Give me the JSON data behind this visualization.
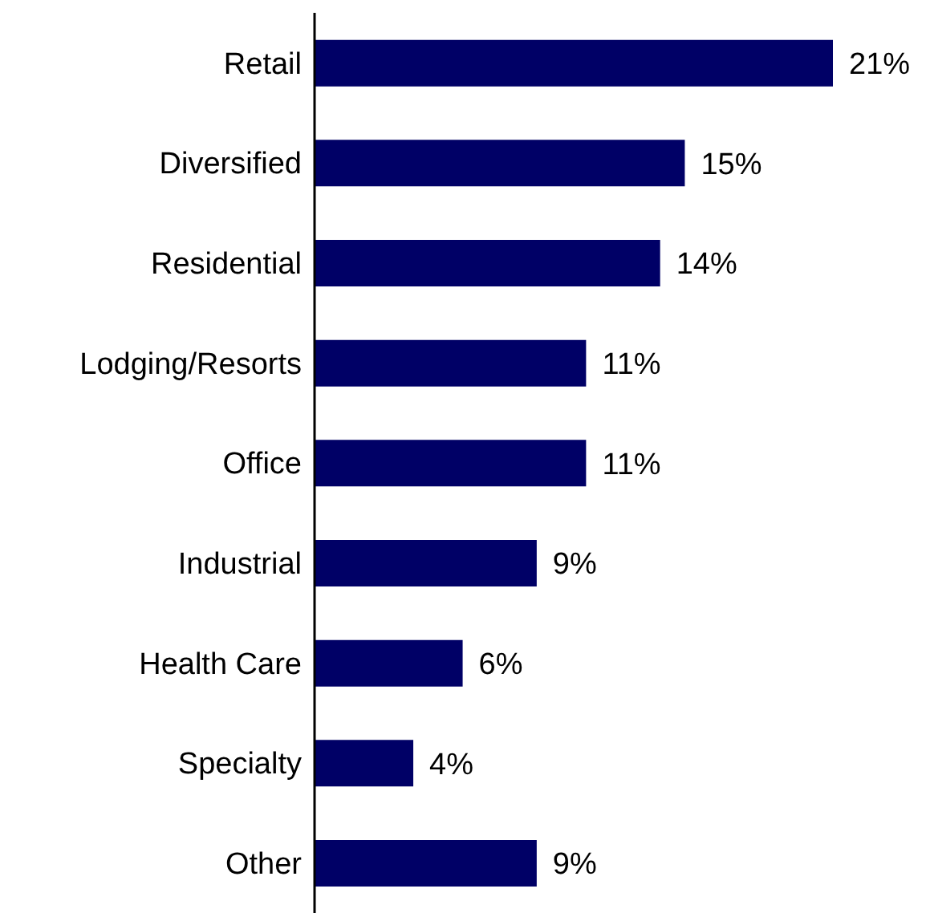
{
  "chart_data": {
    "type": "bar",
    "orientation": "horizontal",
    "categories": [
      "Retail",
      "Diversified",
      "Residential",
      "Lodging/Resorts",
      "Office",
      "Industrial",
      "Health Care",
      "Specialty",
      "Other"
    ],
    "values": [
      21,
      15,
      14,
      11,
      11,
      9,
      6,
      4,
      9
    ],
    "value_labels": [
      "21%",
      "15%",
      "14%",
      "11%",
      "11%",
      "9%",
      "6%",
      "4%",
      "9%"
    ],
    "color": "#000066"
  }
}
